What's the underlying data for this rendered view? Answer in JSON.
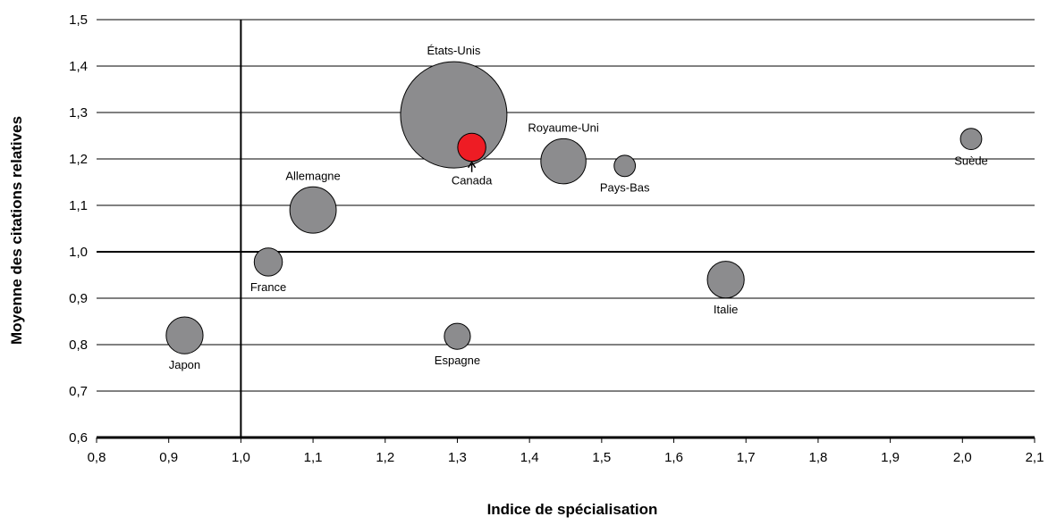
{
  "chart_data": {
    "type": "scatter",
    "title": "",
    "xlabel": "Indice de spécialisation",
    "ylabel": "Moyenne des citations relatives",
    "xlim": [
      0.8,
      2.1
    ],
    "ylim": [
      0.6,
      1.5
    ],
    "x_ticks": [
      "0,8",
      "0,9",
      "1,0",
      "1,1",
      "1,2",
      "1,3",
      "1,4",
      "1,5",
      "1,6",
      "1,7",
      "1,8",
      "1,9",
      "2,0",
      "2,1"
    ],
    "y_ticks": [
      "0,6",
      "0,7",
      "0,8",
      "0,9",
      "1,0",
      "1,1",
      "1,2",
      "1,3",
      "1,4",
      "1,5"
    ],
    "grid": "horizontal",
    "reference_lines": {
      "x": 1.0,
      "y": 1.0
    },
    "colors": {
      "default": "#8c8c8e",
      "highlight": "#ee1c24",
      "stroke": "#000000"
    },
    "points": [
      {
        "name": "États-Unis",
        "x": 1.295,
        "y": 1.295,
        "size": 100,
        "label_pos": "above"
      },
      {
        "name": "Canada",
        "x": 1.32,
        "y": 1.225,
        "size": 7,
        "label_pos": "below",
        "highlight": true
      },
      {
        "name": "Royaume-Uni",
        "x": 1.447,
        "y": 1.195,
        "size": 18,
        "label_pos": "above"
      },
      {
        "name": "Pays-Bas",
        "x": 1.532,
        "y": 1.185,
        "size": 4,
        "label_pos": "below"
      },
      {
        "name": "Suède",
        "x": 2.012,
        "y": 1.243,
        "size": 4,
        "label_pos": "below"
      },
      {
        "name": "Allemagne",
        "x": 1.1,
        "y": 1.09,
        "size": 19,
        "label_pos": "above"
      },
      {
        "name": "France",
        "x": 1.038,
        "y": 0.978,
        "size": 7,
        "label_pos": "below"
      },
      {
        "name": "Italie",
        "x": 1.672,
        "y": 0.94,
        "size": 12,
        "label_pos": "below"
      },
      {
        "name": "Japon",
        "x": 0.922,
        "y": 0.82,
        "size": 12,
        "label_pos": "below"
      },
      {
        "name": "Espagne",
        "x": 1.3,
        "y": 0.818,
        "size": 6,
        "label_pos": "below"
      }
    ]
  }
}
